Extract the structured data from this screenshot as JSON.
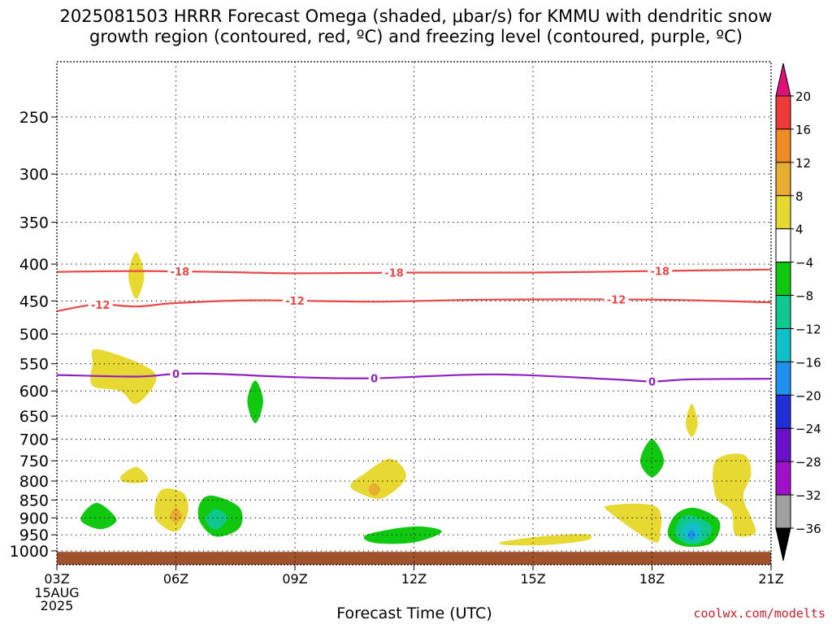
{
  "title_line1": "2025081503 HRRR Forecast Omega (shaded, μbar/s) for KMMU with dendritic snow",
  "title_line2": "growth region (contoured, red, ºC) and freezing level (contoured, purple, ºC)",
  "credit": "coolwx.com/modelts",
  "chart_data": {
    "type": "time-height cross section (filled contour)",
    "title": "2025081503 HRRR Forecast Omega (shaded, μbar/s) for KMMU with dendritic snow growth region (contoured, red, ºC) and freezing level (contoured, purple, ºC)",
    "xlabel": "Forecast Time (UTC)",
    "x_start_label": [
      "03Z",
      "15AUG",
      "2025"
    ],
    "x_ticks": [
      {
        "hour": 3,
        "label": "03Z"
      },
      {
        "hour": 6,
        "label": "06Z"
      },
      {
        "hour": 9,
        "label": "09Z"
      },
      {
        "hour": 12,
        "label": "12Z"
      },
      {
        "hour": 15,
        "label": "15Z"
      },
      {
        "hour": 18,
        "label": "18Z"
      },
      {
        "hour": 21,
        "label": "21Z"
      }
    ],
    "xlim": [
      3,
      21
    ],
    "ylabel": "",
    "y_ticks": [
      250,
      300,
      350,
      400,
      450,
      500,
      550,
      600,
      650,
      700,
      750,
      800,
      850,
      900,
      950,
      1000
    ],
    "ylim": [
      1030,
      200
    ],
    "grid": true,
    "colorbar": {
      "labels": [
        20,
        16,
        12,
        8,
        4,
        -4,
        -8,
        -12,
        -16,
        -20,
        -24,
        -28,
        -32,
        -36
      ],
      "bins": [
        {
          "from": 16,
          "to": 20,
          "color": "#ef3a3a"
        },
        {
          "from": 12,
          "to": 16,
          "color": "#ef8a25"
        },
        {
          "from": 8,
          "to": 12,
          "color": "#e8ae32"
        },
        {
          "from": 4,
          "to": 8,
          "color": "#e8d932"
        },
        {
          "from": -4,
          "to": 4,
          "color": "#ffffff"
        },
        {
          "from": -8,
          "to": -4,
          "color": "#10c810"
        },
        {
          "from": -12,
          "to": -8,
          "color": "#10c88e"
        },
        {
          "from": -16,
          "to": -12,
          "color": "#10c0c8"
        },
        {
          "from": -20,
          "to": -16,
          "color": "#2090ef"
        },
        {
          "from": -24,
          "to": -20,
          "color": "#2030d8"
        },
        {
          "from": -28,
          "to": -24,
          "color": "#6a10c8"
        },
        {
          "from": -32,
          "to": -28,
          "color": "#a010c8"
        },
        {
          "from": -36,
          "to": -32,
          "color": "#a0a0a0"
        }
      ],
      "above_color": "#e0107a",
      "below_color": "#000000"
    },
    "contours": [
      {
        "label": "-18",
        "kind": "dendritic",
        "color": "#e84848",
        "points": [
          [
            3,
            410
          ],
          [
            5,
            409
          ],
          [
            7,
            410
          ],
          [
            9,
            412
          ],
          [
            12,
            411
          ],
          [
            15,
            411
          ],
          [
            18,
            409
          ],
          [
            21,
            407
          ]
        ],
        "labels_at": [
          6.1,
          11.5,
          18.2
        ]
      },
      {
        "label": "-12",
        "kind": "dendritic",
        "color": "#e84848",
        "points": [
          [
            3,
            465
          ],
          [
            4,
            455
          ],
          [
            5,
            458
          ],
          [
            6,
            453
          ],
          [
            8,
            449
          ],
          [
            11,
            451
          ],
          [
            14,
            448
          ],
          [
            18,
            448
          ],
          [
            21,
            452
          ]
        ],
        "labels_at": [
          4.1,
          9.0,
          17.1
        ]
      },
      {
        "label": "0",
        "kind": "freezing",
        "color": "#9020c0",
        "points": [
          [
            3,
            570
          ],
          [
            5,
            573
          ],
          [
            6,
            568
          ],
          [
            7,
            568
          ],
          [
            9,
            574
          ],
          [
            11,
            576
          ],
          [
            14,
            569
          ],
          [
            17,
            578
          ],
          [
            18,
            582
          ],
          [
            19,
            578
          ],
          [
            21,
            577
          ]
        ],
        "labels_at": [
          6.0,
          11.0,
          18.0
        ]
      }
    ],
    "shaded_regions": [
      {
        "color": "#e8d932",
        "points": [
          [
            5.0,
            385
          ],
          [
            5.2,
            415
          ],
          [
            5.0,
            447
          ],
          [
            4.8,
            415
          ]
        ]
      },
      {
        "color": "#e8d932",
        "points": [
          [
            4.0,
            525
          ],
          [
            5.2,
            553
          ],
          [
            5.5,
            580
          ],
          [
            5.0,
            625
          ],
          [
            4.6,
            600
          ],
          [
            3.9,
            590
          ],
          [
            3.9,
            550
          ]
        ]
      },
      {
        "color": "#10c810",
        "points": [
          [
            8.0,
            580
          ],
          [
            8.2,
            620
          ],
          [
            8.0,
            665
          ],
          [
            7.8,
            620
          ]
        ]
      },
      {
        "color": "#e8d932",
        "points": [
          [
            5.0,
            765
          ],
          [
            5.3,
            798
          ],
          [
            4.8,
            805
          ],
          [
            4.6,
            790
          ]
        ]
      },
      {
        "color": "#10c810",
        "points": [
          [
            4.0,
            858
          ],
          [
            4.5,
            905
          ],
          [
            4.1,
            933
          ],
          [
            3.6,
            905
          ]
        ]
      },
      {
        "color": "#e8d932",
        "points": [
          [
            5.7,
            820
          ],
          [
            6.2,
            833
          ],
          [
            6.3,
            885
          ],
          [
            6.0,
            940
          ],
          [
            5.5,
            905
          ],
          [
            5.5,
            850
          ]
        ]
      },
      {
        "color": "#e8ae32",
        "points": [
          [
            6.0,
            870
          ],
          [
            6.15,
            895
          ],
          [
            6.0,
            915
          ],
          [
            5.85,
            895
          ]
        ]
      },
      {
        "color": "#10c810",
        "points": [
          [
            6.9,
            838
          ],
          [
            7.6,
            870
          ],
          [
            7.6,
            930
          ],
          [
            7.0,
            955
          ],
          [
            6.6,
            910
          ],
          [
            6.6,
            860
          ]
        ]
      },
      {
        "color": "#10c88e",
        "points": [
          [
            7.0,
            875
          ],
          [
            7.3,
            900
          ],
          [
            7.0,
            935
          ],
          [
            6.75,
            905
          ]
        ]
      },
      {
        "color": "#10c810",
        "points": [
          [
            18.0,
            700
          ],
          [
            18.3,
            750
          ],
          [
            18.0,
            790
          ],
          [
            17.7,
            750
          ]
        ]
      },
      {
        "color": "#e8d932",
        "points": [
          [
            19.0,
            625
          ],
          [
            19.15,
            665
          ],
          [
            19.0,
            695
          ],
          [
            18.85,
            665
          ]
        ]
      },
      {
        "color": "#e8d932",
        "points": [
          [
            10.7,
            785
          ],
          [
            11.4,
            745
          ],
          [
            11.8,
            790
          ],
          [
            11.2,
            845
          ],
          [
            10.6,
            830
          ],
          [
            10.4,
            810
          ]
        ]
      },
      {
        "color": "#e8ae32",
        "points": [
          [
            11.0,
            805
          ],
          [
            11.15,
            822
          ],
          [
            11.0,
            840
          ],
          [
            10.85,
            822
          ]
        ]
      },
      {
        "color": "#10c810",
        "points": [
          [
            10.8,
            950
          ],
          [
            12.0,
            925
          ],
          [
            12.7,
            940
          ],
          [
            12.0,
            973
          ],
          [
            11.0,
            975
          ]
        ]
      },
      {
        "color": "#e8d932",
        "points": [
          [
            14.2,
            972
          ],
          [
            15.2,
            955
          ],
          [
            16.3,
            948
          ],
          [
            16.4,
            965
          ],
          [
            15.5,
            980
          ],
          [
            14.4,
            982
          ]
        ]
      },
      {
        "color": "#e8d932",
        "points": [
          [
            16.9,
            865
          ],
          [
            18.1,
            868
          ],
          [
            18.2,
            950
          ],
          [
            18.0,
            970
          ],
          [
            17.0,
            890
          ]
        ]
      },
      {
        "color": "#10c810",
        "points": [
          [
            18.6,
            890
          ],
          [
            19.1,
            872
          ],
          [
            19.7,
            910
          ],
          [
            19.5,
            975
          ],
          [
            18.8,
            985
          ],
          [
            18.4,
            950
          ]
        ]
      },
      {
        "color": "#10c88e",
        "points": [
          [
            18.7,
            905
          ],
          [
            19.0,
            893
          ],
          [
            19.5,
            925
          ],
          [
            19.3,
            970
          ],
          [
            18.9,
            978
          ],
          [
            18.6,
            950
          ]
        ]
      },
      {
        "color": "#10c0c8",
        "points": [
          [
            18.9,
            915
          ],
          [
            19.2,
            920
          ],
          [
            19.2,
            960
          ],
          [
            18.9,
            965
          ],
          [
            18.75,
            945
          ]
        ]
      },
      {
        "color": "#2090ef",
        "points": [
          [
            19.0,
            935
          ],
          [
            19.1,
            950
          ],
          [
            19.0,
            965
          ],
          [
            18.9,
            950
          ]
        ]
      },
      {
        "color": "#e8d932",
        "points": [
          [
            19.6,
            750
          ],
          [
            20.3,
            735
          ],
          [
            20.5,
            780
          ],
          [
            20.3,
            840
          ],
          [
            20.5,
            900
          ],
          [
            20.6,
            945
          ],
          [
            20.1,
            950
          ],
          [
            20.0,
            880
          ],
          [
            19.6,
            840
          ]
        ]
      }
    ],
    "terrain": {
      "color": "#a0522d",
      "pressure_top": 1003,
      "note": "surface/below-ground"
    }
  }
}
